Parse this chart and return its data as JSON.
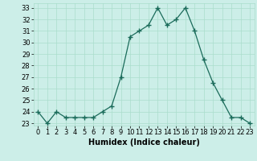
{
  "x": [
    0,
    1,
    2,
    3,
    4,
    5,
    6,
    7,
    8,
    9,
    10,
    11,
    12,
    13,
    14,
    15,
    16,
    17,
    18,
    19,
    20,
    21,
    22,
    23
  ],
  "y": [
    24,
    23,
    24,
    23.5,
    23.5,
    23.5,
    23.5,
    24,
    24.5,
    27,
    30.5,
    31,
    31.5,
    33,
    31.5,
    32,
    33,
    31,
    28.5,
    26.5,
    25,
    23.5,
    23.5,
    23
  ],
  "line_color": "#1a6b5a",
  "marker": "+",
  "bg_color": "#cceee8",
  "grid_color": "#aaddcc",
  "xlabel": "Humidex (Indice chaleur)",
  "ylim": [
    22.8,
    33.4
  ],
  "xlim": [
    -0.5,
    23.5
  ],
  "yticks": [
    23,
    24,
    25,
    26,
    27,
    28,
    29,
    30,
    31,
    32,
    33
  ],
  "xticks": [
    0,
    1,
    2,
    3,
    4,
    5,
    6,
    7,
    8,
    9,
    10,
    11,
    12,
    13,
    14,
    15,
    16,
    17,
    18,
    19,
    20,
    21,
    22,
    23
  ],
  "tick_fontsize": 6,
  "xlabel_fontsize": 7
}
